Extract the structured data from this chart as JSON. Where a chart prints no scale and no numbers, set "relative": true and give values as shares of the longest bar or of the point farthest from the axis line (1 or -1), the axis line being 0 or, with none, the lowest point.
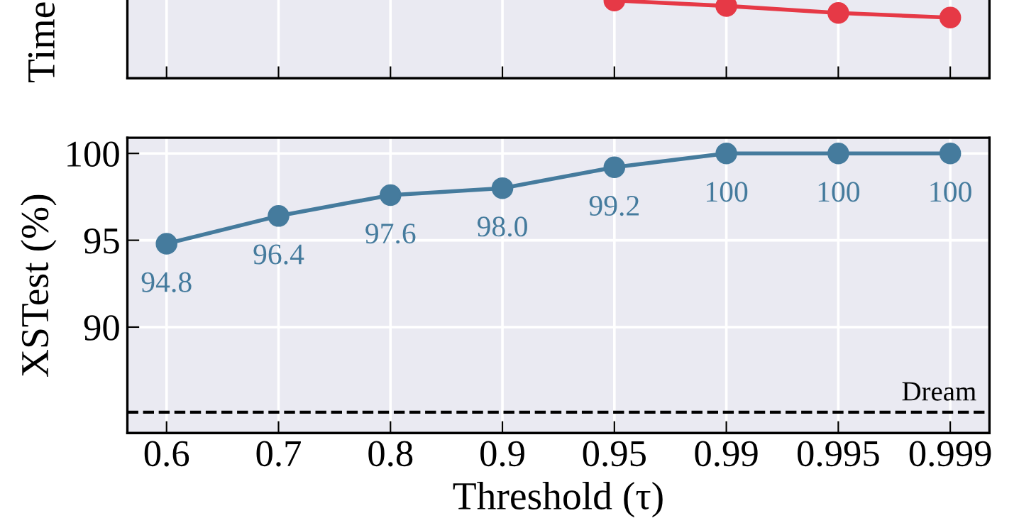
{
  "chart_data": [
    {
      "type": "line",
      "ylabel": "Time",
      "categories": [
        "0.6",
        "0.7",
        "0.8",
        "0.9",
        "0.95",
        "0.99",
        "0.995",
        "0.999"
      ],
      "relative": true,
      "tick_labels": false,
      "grid": true,
      "marker": "circle",
      "line_style": "solid",
      "series": [
        {
          "color": "#e63946",
          "values": [
            null,
            null,
            null,
            null,
            1,
            0.93,
            0.84,
            0.78
          ]
        }
      ]
    },
    {
      "type": "line",
      "xlabel": "Threshold (τ)",
      "ylabel": "XSTest (%)",
      "categories": [
        "0.6",
        "0.7",
        "0.8",
        "0.9",
        "0.95",
        "0.99",
        "0.995",
        "0.999"
      ],
      "ylim": [
        83.9,
        100.9
      ],
      "yticks": [
        90,
        95,
        100
      ],
      "grid": true,
      "marker": "circle",
      "line_style": "solid",
      "series": [
        {
          "color": "#457b9d",
          "values": [
            94.8,
            96.4,
            97.6,
            98.0,
            99.2,
            100,
            100,
            100
          ],
          "value_labels": [
            "94.8",
            "96.4",
            "97.6",
            "98.0",
            "99.2",
            "100",
            "100",
            "100"
          ]
        }
      ],
      "ref_lines": [
        {
          "axis": "y",
          "value": 85.1,
          "label": "Dream",
          "color": "#000000",
          "line_style": "dashed"
        }
      ]
    }
  ]
}
